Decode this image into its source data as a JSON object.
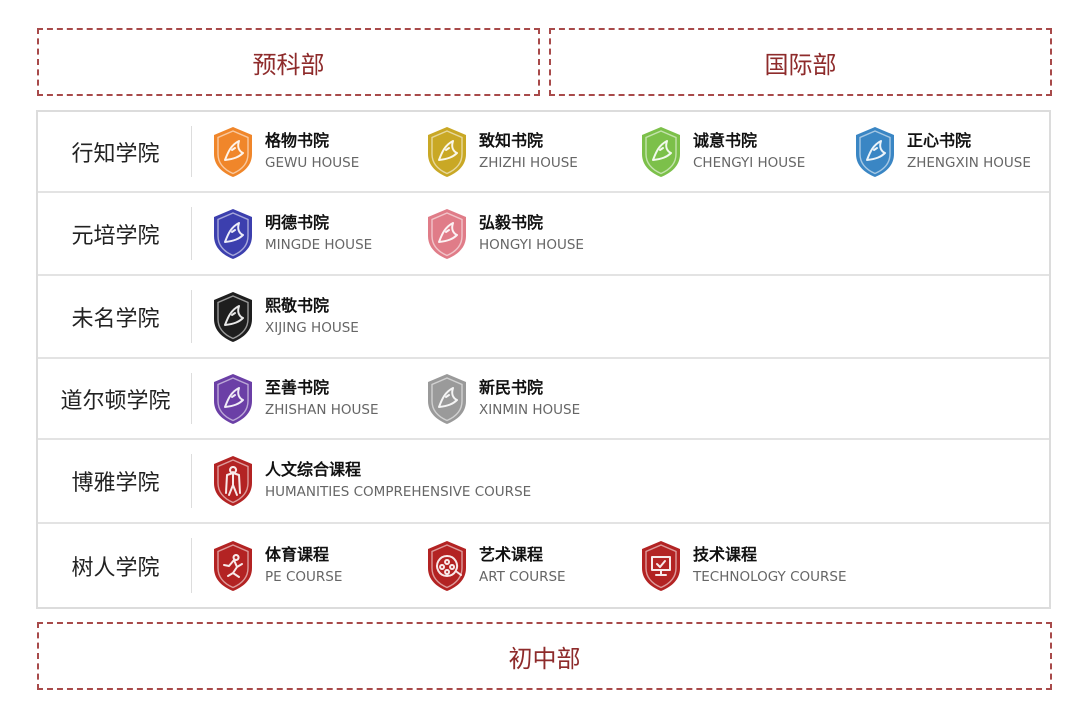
{
  "sections": {
    "yuke": "预科部",
    "guoji": "国际部",
    "chuzhong": "初中部"
  },
  "colors": {
    "accent": "#8e2b2b",
    "course_red": "#b32323"
  },
  "rows": [
    {
      "label": "行知学院",
      "entries": [
        {
          "cn": "格物书院",
          "en": "GEWU HOUSE",
          "icon": "lion-shield-icon",
          "color": "#f0862a"
        },
        {
          "cn": "致知书院",
          "en": "ZHIZHI HOUSE",
          "icon": "dragon-shield-icon",
          "color": "#c9a825"
        },
        {
          "cn": "诚意书院",
          "en": "CHENGYI HOUSE",
          "icon": "bird-shield-icon",
          "color": "#7cc04a"
        },
        {
          "cn": "正心书院",
          "en": "ZHENGXIN HOUSE",
          "icon": "bull-shield-icon",
          "color": "#3a86c4"
        }
      ]
    },
    {
      "label": "元培学院",
      "entries": [
        {
          "cn": "明德书院",
          "en": "MINGDE HOUSE",
          "icon": "eagle-shield-icon",
          "color": "#3c3fae"
        },
        {
          "cn": "弘毅书院",
          "en": "HONGYI HOUSE",
          "icon": "phoenix-shield-icon",
          "color": "#e07c88"
        }
      ]
    },
    {
      "label": "未名学院",
      "entries": [
        {
          "cn": "熙敬书院",
          "en": "XIJING HOUSE",
          "icon": "swan-shield-icon",
          "color": "#1e1e1e"
        }
      ]
    },
    {
      "label": "道尔顿学院",
      "entries": [
        {
          "cn": "至善书院",
          "en": "ZHISHAN HOUSE",
          "icon": "bamboo-shield-icon",
          "color": "#6b3fa6"
        },
        {
          "cn": "新民书院",
          "en": "XINMIN HOUSE",
          "icon": "horse-shield-icon",
          "color": "#9a9a9a"
        }
      ]
    },
    {
      "label": "博雅学院",
      "entries": [
        {
          "cn": "人文综合课程",
          "en": "HUMANITIES COMPREHENSIVE COURSE",
          "icon": "humanities-shield-icon",
          "color": "#b32323"
        }
      ]
    },
    {
      "label": "树人学院",
      "entries": [
        {
          "cn": "体育课程",
          "en": "PE COURSE",
          "icon": "runner-shield-icon",
          "color": "#b32323"
        },
        {
          "cn": "艺术课程",
          "en": "ART COURSE",
          "icon": "film-reel-shield-icon",
          "color": "#b32323"
        },
        {
          "cn": "技术课程",
          "en": "TECHNOLOGY COURSE",
          "icon": "monitor-shield-icon",
          "color": "#b32323"
        }
      ]
    }
  ]
}
